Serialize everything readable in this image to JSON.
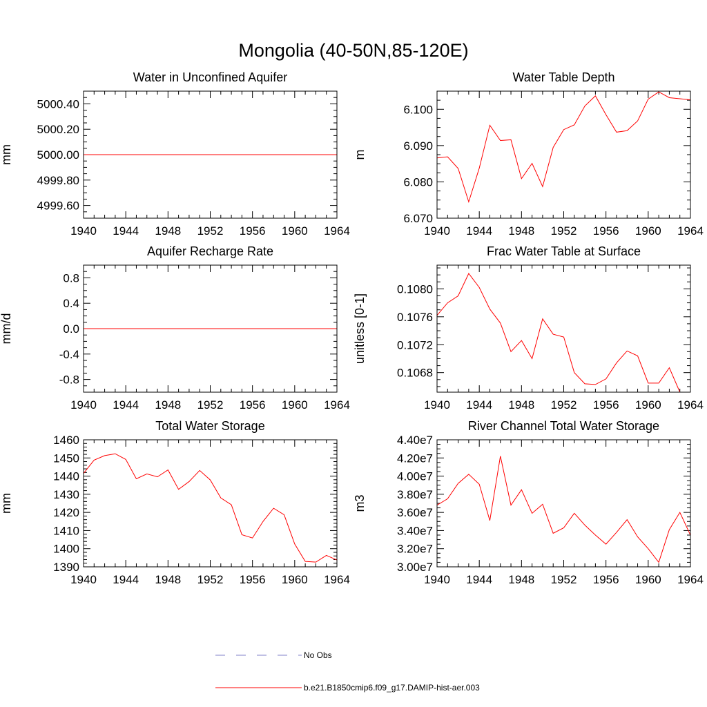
{
  "figure": {
    "title": "Mongolia (40-50N,85-120E)"
  },
  "chart_data": [
    {
      "type": "line",
      "title": "Water in Unconfined Aquifer",
      "ylabel": "mm",
      "xlim": [
        1940,
        1964
      ],
      "ylim": [
        4999.5,
        5000.5
      ],
      "xticks": [
        1940,
        1944,
        1948,
        1952,
        1956,
        1960,
        1964
      ],
      "xtick_labels": [
        "1940",
        "1944",
        "1948",
        "1952",
        "1956",
        "1960",
        "1964"
      ],
      "yticks": [
        4999.6,
        4999.8,
        5000.0,
        5000.2,
        5000.4
      ],
      "ytick_labels": [
        "4999.60",
        "4999.80",
        "5000.00",
        "5000.20",
        "5000.40"
      ],
      "yminor": 0.05,
      "x": [
        1940,
        1941,
        1942,
        1943,
        1944,
        1945,
        1946,
        1947,
        1948,
        1949,
        1950,
        1951,
        1952,
        1953,
        1954,
        1955,
        1956,
        1957,
        1958,
        1959,
        1960,
        1961,
        1962,
        1963,
        1964
      ],
      "series": [
        {
          "color": "#ff0000",
          "values": [
            5000,
            5000,
            5000,
            5000,
            5000,
            5000,
            5000,
            5000,
            5000,
            5000,
            5000,
            5000,
            5000,
            5000,
            5000,
            5000,
            5000,
            5000,
            5000,
            5000,
            5000,
            5000,
            5000,
            5000,
            5000
          ]
        }
      ]
    },
    {
      "type": "line",
      "title": "Water Table Depth",
      "ylabel": "m",
      "xlim": [
        1940,
        1964
      ],
      "ylim": [
        6.07,
        6.105
      ],
      "xticks": [
        1940,
        1944,
        1948,
        1952,
        1956,
        1960,
        1964
      ],
      "xtick_labels": [
        "1940",
        "1944",
        "1948",
        "1952",
        "1956",
        "1960",
        "1964"
      ],
      "yticks": [
        6.07,
        6.08,
        6.09,
        6.1
      ],
      "ytick_labels": [
        "6.070",
        "6.080",
        "6.090",
        "6.100"
      ],
      "yminor": 0.0025,
      "x": [
        1940,
        1941,
        1942,
        1943,
        1944,
        1945,
        1946,
        1947,
        1948,
        1949,
        1950,
        1951,
        1952,
        1953,
        1954,
        1955,
        1956,
        1957,
        1958,
        1959,
        1960,
        1961,
        1962,
        1963,
        1964
      ],
      "series": [
        {
          "color": "#ff0000",
          "values": [
            6.0866,
            6.0869,
            6.0837,
            6.0745,
            6.0838,
            6.0956,
            6.0914,
            6.0916,
            6.0809,
            6.0851,
            6.0787,
            6.0895,
            6.0944,
            6.0957,
            6.1009,
            6.1037,
            6.0985,
            6.0937,
            6.0941,
            6.0968,
            6.1028,
            6.1048,
            6.1032,
            6.1029,
            6.1026
          ]
        }
      ]
    },
    {
      "type": "line",
      "title": "Aquifer Recharge Rate",
      "ylabel": "mm/d",
      "xlim": [
        1940,
        1964
      ],
      "ylim": [
        -1.0,
        1.0
      ],
      "xticks": [
        1940,
        1944,
        1948,
        1952,
        1956,
        1960,
        1964
      ],
      "xtick_labels": [
        "1940",
        "1944",
        "1948",
        "1952",
        "1956",
        "1960",
        "1964"
      ],
      "yticks": [
        -0.8,
        -0.4,
        0.0,
        0.4,
        0.8
      ],
      "ytick_labels": [
        "-0.8",
        "-0.4",
        "0.0",
        "0.4",
        "0.8"
      ],
      "yminor": 0.1,
      "x": [
        1940,
        1941,
        1942,
        1943,
        1944,
        1945,
        1946,
        1947,
        1948,
        1949,
        1950,
        1951,
        1952,
        1953,
        1954,
        1955,
        1956,
        1957,
        1958,
        1959,
        1960,
        1961,
        1962,
        1963,
        1964
      ],
      "series": [
        {
          "color": "#ff0000",
          "values": [
            0,
            0,
            0,
            0,
            0,
            0,
            0,
            0,
            0,
            0,
            0,
            0,
            0,
            0,
            0,
            0,
            0,
            0,
            0,
            0,
            0,
            0,
            0,
            0,
            0
          ]
        }
      ]
    },
    {
      "type": "line",
      "title": "Frac Water Table at Surface",
      "ylabel": "unitless [0-1]",
      "xlim": [
        1940,
        1964
      ],
      "ylim": [
        0.10652,
        0.10834
      ],
      "xticks": [
        1940,
        1944,
        1948,
        1952,
        1956,
        1960,
        1964
      ],
      "xtick_labels": [
        "1940",
        "1944",
        "1948",
        "1952",
        "1956",
        "1960",
        "1964"
      ],
      "yticks": [
        0.1068,
        0.1072,
        0.1076,
        0.108
      ],
      "ytick_labels": [
        "0.1068",
        "0.1072",
        "0.1076",
        "0.1080"
      ],
      "yminor": 0.0001,
      "x": [
        1940,
        1941,
        1942,
        1943,
        1944,
        1945,
        1946,
        1947,
        1948,
        1949,
        1950,
        1951,
        1952,
        1953,
        1954,
        1955,
        1956,
        1957,
        1958,
        1959,
        1960,
        1961,
        1962,
        1963,
        1964
      ],
      "series": [
        {
          "color": "#ff0000",
          "values": [
            0.10762,
            0.1078,
            0.1079,
            0.10822,
            0.10802,
            0.10771,
            0.10751,
            0.1071,
            0.10726,
            0.107,
            0.10757,
            0.10735,
            0.10731,
            0.1068,
            0.10664,
            0.10663,
            0.10671,
            0.10694,
            0.10711,
            0.10704,
            0.10665,
            0.10665,
            0.10687,
            0.10652,
            0.10652
          ]
        }
      ]
    },
    {
      "type": "line",
      "title": "Total Water Storage",
      "ylabel": "mm",
      "xlim": [
        1940,
        1964
      ],
      "ylim": [
        1390,
        1460
      ],
      "xticks": [
        1940,
        1944,
        1948,
        1952,
        1956,
        1960,
        1964
      ],
      "xtick_labels": [
        "1940",
        "1944",
        "1948",
        "1952",
        "1956",
        "1960",
        "1964"
      ],
      "yticks": [
        1390,
        1400,
        1410,
        1420,
        1430,
        1440,
        1450,
        1460
      ],
      "ytick_labels": [
        "1390",
        "1400",
        "1410",
        "1420",
        "1430",
        "1440",
        "1450",
        "1460"
      ],
      "yminor": 2,
      "x": [
        1940,
        1941,
        1942,
        1943,
        1944,
        1945,
        1946,
        1947,
        1948,
        1949,
        1950,
        1951,
        1952,
        1953,
        1954,
        1955,
        1956,
        1957,
        1958,
        1959,
        1960,
        1961,
        1962,
        1963,
        1964
      ],
      "series": [
        {
          "color": "#ff0000",
          "values": [
            1441.5,
            1448.8,
            1451.3,
            1452.3,
            1449.2,
            1438.5,
            1441.2,
            1439.6,
            1443.4,
            1432.7,
            1437.0,
            1443.1,
            1437.9,
            1428.0,
            1424.2,
            1407.7,
            1405.9,
            1415.0,
            1422.3,
            1418.7,
            1402.6,
            1393.0,
            1392.6,
            1396.3,
            1393.8
          ]
        }
      ]
    },
    {
      "type": "line",
      "title": "River Channel Total Water Storage",
      "ylabel": "m3",
      "xlim": [
        1940,
        1964
      ],
      "ylim": [
        30000000,
        44000000
      ],
      "xticks": [
        1940,
        1944,
        1948,
        1952,
        1956,
        1960,
        1964
      ],
      "xtick_labels": [
        "1940",
        "1944",
        "1948",
        "1952",
        "1956",
        "1960",
        "1964"
      ],
      "yticks": [
        30000000,
        32000000,
        34000000,
        36000000,
        38000000,
        40000000,
        42000000,
        44000000
      ],
      "ytick_labels": [
        "3.00e7",
        "3.20e7",
        "3.40e7",
        "3.60e7",
        "3.80e7",
        "4.00e7",
        "4.20e7",
        "4.40e7"
      ],
      "yminor": 500000,
      "x": [
        1940,
        1941,
        1942,
        1943,
        1944,
        1945,
        1946,
        1947,
        1948,
        1949,
        1950,
        1951,
        1952,
        1953,
        1954,
        1955,
        1956,
        1957,
        1958,
        1959,
        1960,
        1961,
        1962,
        1963,
        1964
      ],
      "series": [
        {
          "color": "#ff0000",
          "values": [
            36800000,
            37500000,
            39200000,
            40200000,
            39100000,
            35100000,
            42200000,
            36800000,
            38500000,
            35900000,
            36900000,
            33700000,
            34300000,
            35900000,
            34600000,
            33500000,
            32500000,
            33800000,
            35200000,
            33300000,
            32000000,
            30500000,
            34100000,
            36000000,
            33500000
          ]
        }
      ]
    }
  ],
  "legend": {
    "items": [
      {
        "label": "No Obs",
        "color": "#8080c8",
        "style": "dashed"
      },
      {
        "label": "b.e21.B1850cmip6.f09_g17.DAMIP-hist-aer.003",
        "color": "#ff0000",
        "style": "solid"
      }
    ]
  }
}
